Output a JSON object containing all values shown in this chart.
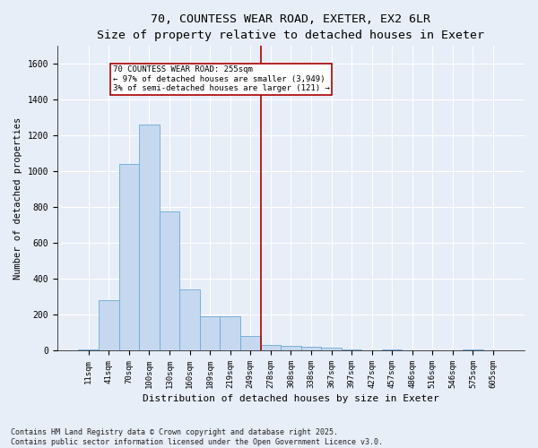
{
  "title": "70, COUNTESS WEAR ROAD, EXETER, EX2 6LR",
  "subtitle": "Size of property relative to detached houses in Exeter",
  "xlabel": "Distribution of detached houses by size in Exeter",
  "ylabel": "Number of detached properties",
  "bar_color": "#c5d8f0",
  "bar_edge_color": "#6aaad4",
  "background_color": "#e8eef8",
  "fig_facecolor": "#e8eef8",
  "grid_color": "#ffffff",
  "categories": [
    "11sqm",
    "41sqm",
    "70sqm",
    "100sqm",
    "130sqm",
    "160sqm",
    "189sqm",
    "219sqm",
    "249sqm",
    "278sqm",
    "308sqm",
    "338sqm",
    "367sqm",
    "397sqm",
    "427sqm",
    "457sqm",
    "486sqm",
    "516sqm",
    "546sqm",
    "575sqm",
    "605sqm"
  ],
  "values": [
    5,
    280,
    1040,
    1260,
    775,
    340,
    190,
    190,
    80,
    30,
    25,
    20,
    15,
    5,
    0,
    5,
    0,
    0,
    0,
    5,
    0
  ],
  "ylim": [
    0,
    1700
  ],
  "yticks": [
    0,
    200,
    400,
    600,
    800,
    1000,
    1200,
    1400,
    1600
  ],
  "vline_x_index": 8.5,
  "annotation_text": "70 COUNTESS WEAR ROAD: 255sqm\n← 97% of detached houses are smaller (3,949)\n3% of semi-detached houses are larger (121) →",
  "annotation_box_color": "#ffffff",
  "annotation_border_color": "#aa0000",
  "vline_color": "#aa0000",
  "footer_text": "Contains HM Land Registry data © Crown copyright and database right 2025.\nContains public sector information licensed under the Open Government Licence v3.0.",
  "figsize": [
    6.0,
    5.0
  ],
  "dpi": 100
}
